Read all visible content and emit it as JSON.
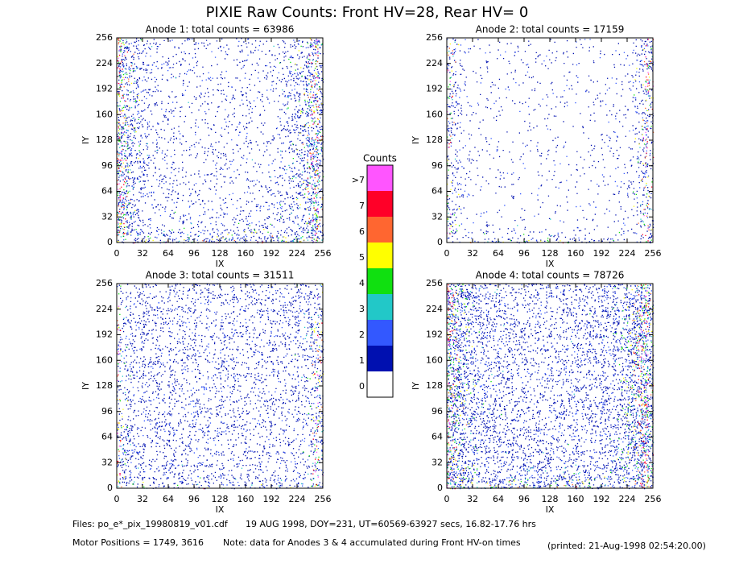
{
  "title": "PIXIE Raw Counts:  Front HV=28, Rear HV= 0",
  "chart_data": [
    {
      "type": "heatmap",
      "title": "Anode 1: total counts = 63986",
      "xlabel": "IX",
      "ylabel": "IY",
      "xlim": [
        0,
        256
      ],
      "ylim": [
        0,
        256
      ],
      "xticks": [
        0,
        32,
        64,
        96,
        128,
        160,
        192,
        224,
        256
      ],
      "yticks": [
        0,
        32,
        64,
        96,
        128,
        160,
        192,
        224,
        256
      ]
    },
    {
      "type": "heatmap",
      "title": "Anode 2: total counts = 17159",
      "xlabel": "IX",
      "ylabel": "IY",
      "xlim": [
        0,
        256
      ],
      "ylim": [
        0,
        256
      ],
      "xticks": [
        0,
        32,
        64,
        96,
        128,
        160,
        192,
        224,
        256
      ],
      "yticks": [
        0,
        32,
        64,
        96,
        128,
        160,
        192,
        224,
        256
      ]
    },
    {
      "type": "heatmap",
      "title": "Anode 3: total counts = 31511",
      "xlabel": "IX",
      "ylabel": "IY",
      "xlim": [
        0,
        256
      ],
      "ylim": [
        0,
        256
      ],
      "xticks": [
        0,
        32,
        64,
        96,
        128,
        160,
        192,
        224,
        256
      ],
      "yticks": [
        0,
        32,
        64,
        96,
        128,
        160,
        192,
        224,
        256
      ]
    },
    {
      "type": "heatmap",
      "title": "Anode 4: total counts = 78726",
      "xlabel": "IX",
      "ylabel": "IY",
      "xlim": [
        0,
        256
      ],
      "ylim": [
        0,
        256
      ],
      "xticks": [
        0,
        32,
        64,
        96,
        128,
        160,
        192,
        224,
        256
      ],
      "yticks": [
        0,
        32,
        64,
        96,
        128,
        160,
        192,
        224,
        256
      ]
    }
  ],
  "colorbar": {
    "title": "Counts",
    "labels": [
      "0",
      "1",
      "2",
      "3",
      "4",
      "5",
      "6",
      "7",
      ">7"
    ],
    "colors": [
      "#ffffff",
      "#0010b0",
      "#3358ff",
      "#22c8c8",
      "#10e010",
      "#ffff00",
      "#ff6630",
      "#ff0028",
      "#ff55ff"
    ]
  },
  "footer": {
    "files": "Files: po_e*_pix_19980819_v01.cdf",
    "date": "19 AUG 1998, DOY=231, UT=60569-63927 secs, 16.82-17.76 hrs",
    "motor": "Motor Positions = 1749, 3616",
    "note": "Note: data for Anodes 3 & 4 accumulated during Front HV-on times",
    "printed": "(printed: 21-Aug-1998 02:54:20.00)"
  }
}
